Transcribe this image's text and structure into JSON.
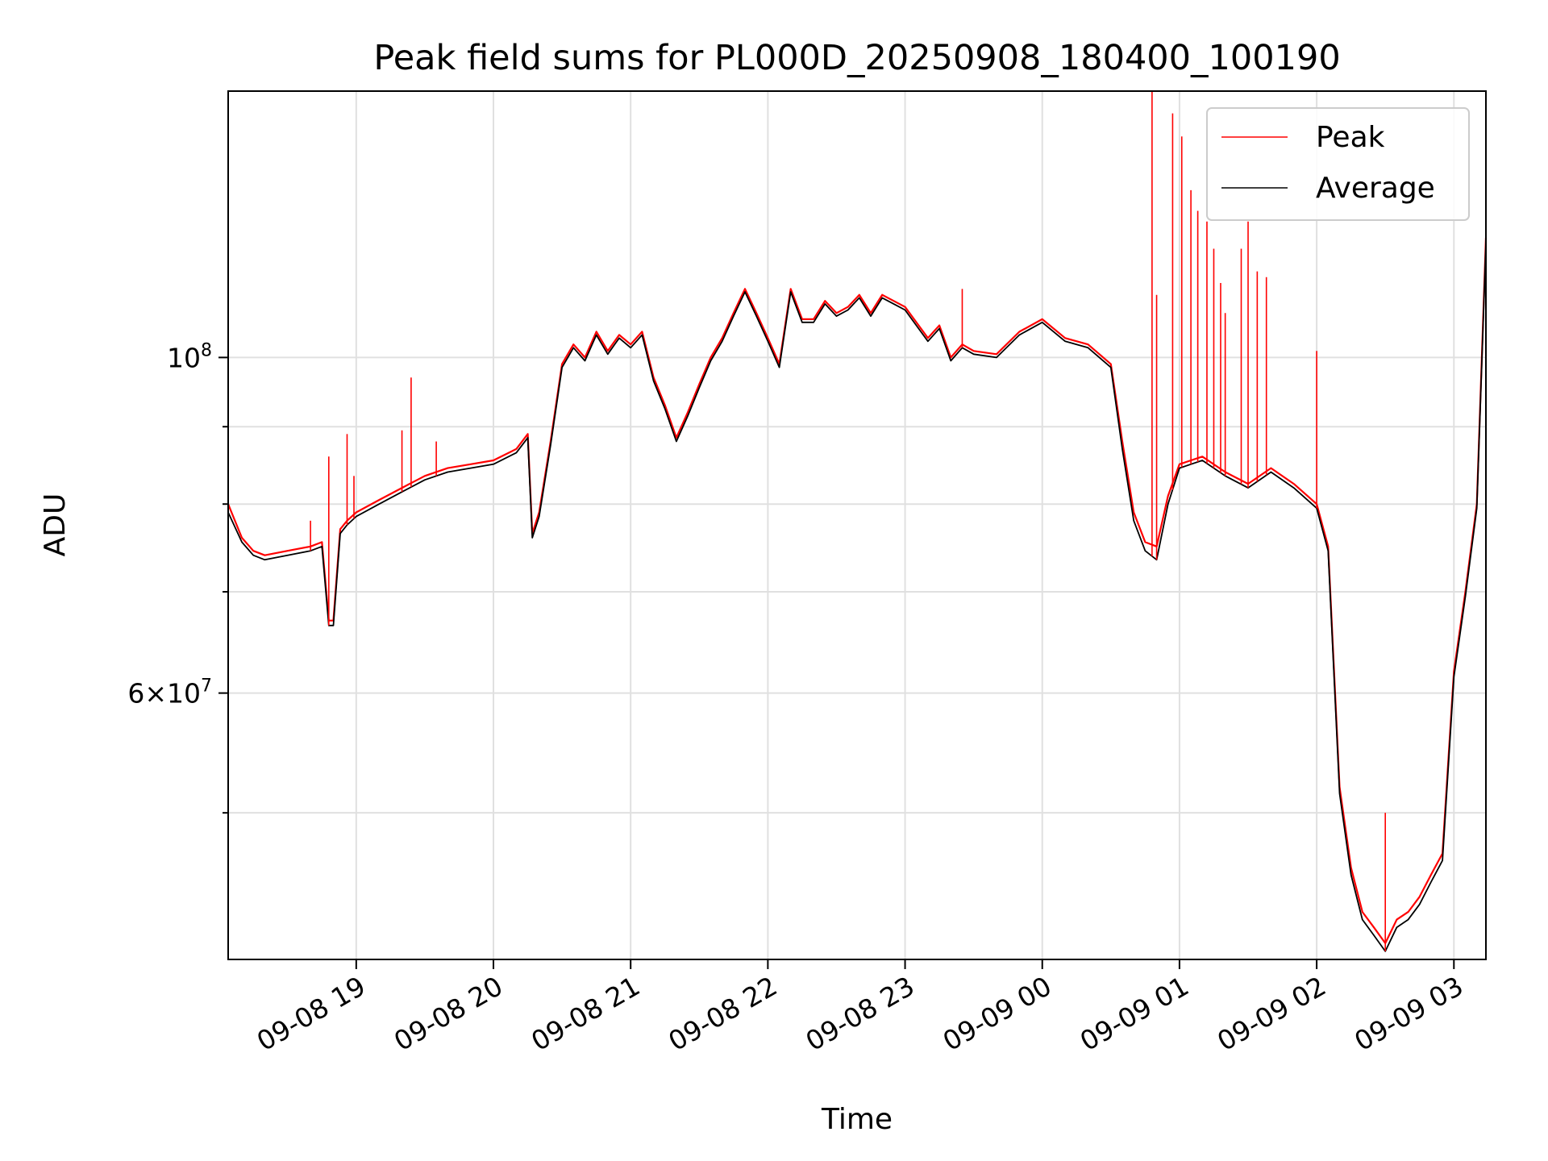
{
  "chart_data": {
    "type": "line",
    "title": "Peak field sums for PL000D_20250908_180400_100190",
    "xlabel": "Time",
    "ylabel": "ADU",
    "yscale": "log",
    "ylim": [
      40000000,
      150000000
    ],
    "xlim": [
      "2025-09-08 18:04",
      "2025-09-09 03:14"
    ],
    "grid": true,
    "legend_location": "upper right",
    "x_ticks": [
      "09-08 19",
      "09-08 20",
      "09-08 21",
      "09-08 22",
      "09-08 23",
      "09-09 00",
      "09-09 01",
      "09-09 02",
      "09-09 03"
    ],
    "y_tick_labels": [
      {
        "value": 100000000,
        "mantissa": "",
        "base": "10",
        "exp": "8"
      },
      {
        "value": 60000000,
        "mantissa": "6",
        "base": "10",
        "exp": "7"
      }
    ],
    "y_minor_ticks": [
      50000000,
      70000000,
      80000000,
      90000000
    ],
    "x": [
      "2025-09-08 18:04",
      "2025-09-08 18:10",
      "2025-09-08 18:15",
      "2025-09-08 18:20",
      "2025-09-08 18:30",
      "2025-09-08 18:40",
      "2025-09-08 18:45",
      "2025-09-08 18:48",
      "2025-09-08 18:50",
      "2025-09-08 18:53",
      "2025-09-08 18:56",
      "2025-09-08 19:00",
      "2025-09-08 19:10",
      "2025-09-08 19:20",
      "2025-09-08 19:30",
      "2025-09-08 19:40",
      "2025-09-08 19:50",
      "2025-09-08 20:00",
      "2025-09-08 20:10",
      "2025-09-08 20:15",
      "2025-09-08 20:17",
      "2025-09-08 20:20",
      "2025-09-08 20:25",
      "2025-09-08 20:30",
      "2025-09-08 20:35",
      "2025-09-08 20:40",
      "2025-09-08 20:45",
      "2025-09-08 20:50",
      "2025-09-08 20:55",
      "2025-09-08 21:00",
      "2025-09-08 21:05",
      "2025-09-08 21:10",
      "2025-09-08 21:15",
      "2025-09-08 21:20",
      "2025-09-08 21:25",
      "2025-09-08 21:30",
      "2025-09-08 21:35",
      "2025-09-08 21:40",
      "2025-09-08 21:45",
      "2025-09-08 21:50",
      "2025-09-08 21:55",
      "2025-09-08 22:00",
      "2025-09-08 22:05",
      "2025-09-08 22:10",
      "2025-09-08 22:15",
      "2025-09-08 22:20",
      "2025-09-08 22:25",
      "2025-09-08 22:30",
      "2025-09-08 22:35",
      "2025-09-08 22:40",
      "2025-09-08 22:45",
      "2025-09-08 22:50",
      "2025-09-08 22:55",
      "2025-09-08 23:00",
      "2025-09-08 23:10",
      "2025-09-08 23:15",
      "2025-09-08 23:20",
      "2025-09-08 23:25",
      "2025-09-08 23:30",
      "2025-09-08 23:40",
      "2025-09-08 23:50",
      "2025-09-09 00:00",
      "2025-09-09 00:10",
      "2025-09-09 00:20",
      "2025-09-09 00:30",
      "2025-09-09 00:35",
      "2025-09-09 00:40",
      "2025-09-09 00:45",
      "2025-09-09 00:50",
      "2025-09-09 00:55",
      "2025-09-09 01:00",
      "2025-09-09 01:05",
      "2025-09-09 01:10",
      "2025-09-09 01:20",
      "2025-09-09 01:30",
      "2025-09-09 01:40",
      "2025-09-09 01:50",
      "2025-09-09 02:00",
      "2025-09-09 02:05",
      "2025-09-09 02:10",
      "2025-09-09 02:15",
      "2025-09-09 02:20",
      "2025-09-09 02:25",
      "2025-09-09 02:30",
      "2025-09-09 02:35",
      "2025-09-09 02:40",
      "2025-09-09 02:45",
      "2025-09-09 02:50",
      "2025-09-09 02:55",
      "2025-09-09 03:00",
      "2025-09-09 03:05",
      "2025-09-09 03:10",
      "2025-09-09 03:14"
    ],
    "series": [
      {
        "name": "Peak",
        "color": "#ff0000",
        "values": [
          80000000,
          76000000,
          74500000,
          74000000,
          74500000,
          75000000,
          75500000,
          67000000,
          67000000,
          77000000,
          78000000,
          79000000,
          80500000,
          82000000,
          83500000,
          84500000,
          85000000,
          85500000,
          87000000,
          89000000,
          76500000,
          79000000,
          88000000,
          99000000,
          102000000,
          100000000,
          104000000,
          101000000,
          103500000,
          102000000,
          104000000,
          97000000,
          93000000,
          88500000,
          92000000,
          96000000,
          100000000,
          103000000,
          107000000,
          111000000,
          107000000,
          103000000,
          99000000,
          111000000,
          106000000,
          106000000,
          109000000,
          107000000,
          108000000,
          110000000,
          107000000,
          110000000,
          109000000,
          108000000,
          103000000,
          105000000,
          100000000,
          102000000,
          101000000,
          100500000,
          104000000,
          106000000,
          103000000,
          102000000,
          99000000,
          88000000,
          79000000,
          75500000,
          75000000,
          81000000,
          85000000,
          85500000,
          86000000,
          84000000,
          82500000,
          84500000,
          82500000,
          80000000,
          75000000,
          52000000,
          46000000,
          43000000,
          42000000,
          41000000,
          42500000,
          43000000,
          44000000,
          45500000,
          47000000,
          62000000,
          70000000,
          80000000,
          120000000
        ]
      },
      {
        "name": "Average",
        "color": "#000000",
        "values": [
          79000000,
          75500000,
          74000000,
          73500000,
          74000000,
          74500000,
          75000000,
          66500000,
          66500000,
          76500000,
          77500000,
          78500000,
          80000000,
          81500000,
          83000000,
          84000000,
          84500000,
          85000000,
          86500000,
          88500000,
          76000000,
          78500000,
          87500000,
          98500000,
          101500000,
          99500000,
          103500000,
          100500000,
          103000000,
          101500000,
          103500000,
          96500000,
          92500000,
          88000000,
          91500000,
          95500000,
          99500000,
          102500000,
          106500000,
          110500000,
          106500000,
          102500000,
          98500000,
          110500000,
          105500000,
          105500000,
          108500000,
          106500000,
          107500000,
          109500000,
          106500000,
          109500000,
          108500000,
          107500000,
          102500000,
          104500000,
          99500000,
          101500000,
          100500000,
          100000000,
          103500000,
          105500000,
          102500000,
          101500000,
          98500000,
          87000000,
          78000000,
          74500000,
          73500000,
          80000000,
          84500000,
          85000000,
          85500000,
          83500000,
          82000000,
          84000000,
          82000000,
          79500000,
          74500000,
          51500000,
          45500000,
          42500000,
          41500000,
          40500000,
          42000000,
          42500000,
          43500000,
          45000000,
          46500000,
          61500000,
          69500000,
          79500000,
          119000000
        ]
      }
    ],
    "spikes": [
      {
        "x": "2025-09-08 18:40",
        "value": 78000000
      },
      {
        "x": "2025-09-08 18:48",
        "value": 86000000
      },
      {
        "x": "2025-09-08 18:56",
        "value": 89000000
      },
      {
        "x": "2025-09-08 18:59",
        "value": 83500000
      },
      {
        "x": "2025-09-08 19:20",
        "value": 89500000
      },
      {
        "x": "2025-09-08 19:24",
        "value": 97000000
      },
      {
        "x": "2025-09-08 19:35",
        "value": 88000000
      },
      {
        "x": "2025-09-08 23:25",
        "value": 111000000
      },
      {
        "x": "2025-09-09 00:48",
        "value": 150000000
      },
      {
        "x": "2025-09-09 00:50",
        "value": 110000000
      },
      {
        "x": "2025-09-09 00:57",
        "value": 145000000
      },
      {
        "x": "2025-09-09 01:01",
        "value": 140000000
      },
      {
        "x": "2025-09-09 01:05",
        "value": 129000000
      },
      {
        "x": "2025-09-09 01:08",
        "value": 125000000
      },
      {
        "x": "2025-09-09 01:12",
        "value": 123000000
      },
      {
        "x": "2025-09-09 01:15",
        "value": 118000000
      },
      {
        "x": "2025-09-09 01:18",
        "value": 112000000
      },
      {
        "x": "2025-09-09 01:20",
        "value": 107000000
      },
      {
        "x": "2025-09-09 01:27",
        "value": 118000000
      },
      {
        "x": "2025-09-09 01:30",
        "value": 123000000
      },
      {
        "x": "2025-09-09 01:34",
        "value": 114000000
      },
      {
        "x": "2025-09-09 01:38",
        "value": 113000000
      },
      {
        "x": "2025-09-09 02:00",
        "value": 101000000
      },
      {
        "x": "2025-09-09 02:30",
        "value": 50000000
      }
    ]
  }
}
